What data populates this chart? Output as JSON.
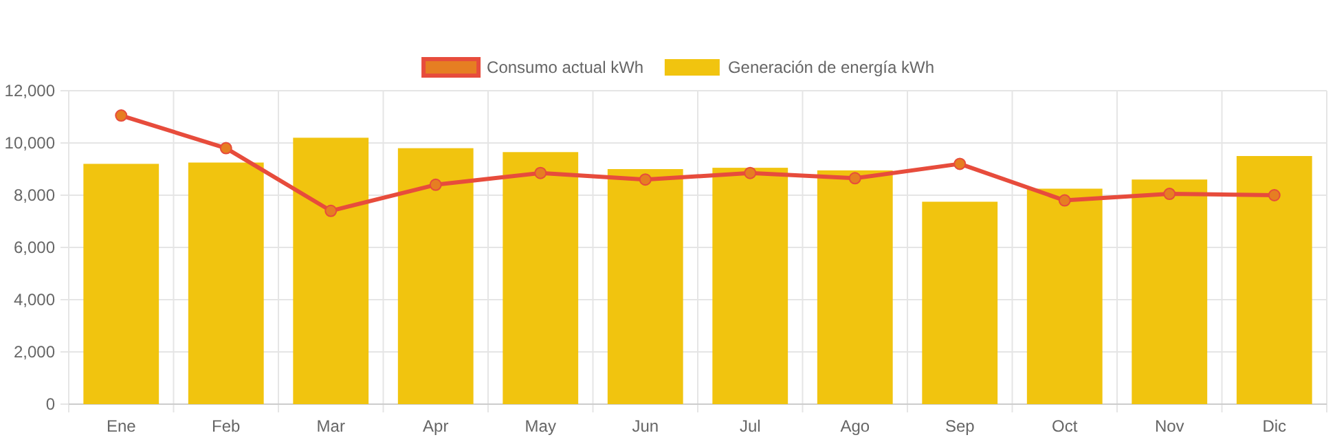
{
  "chart_data": {
    "type": "bar",
    "categories": [
      "Ene",
      "Feb",
      "Mar",
      "Apr",
      "May",
      "Jun",
      "Jul",
      "Ago",
      "Sep",
      "Oct",
      "Nov",
      "Dic"
    ],
    "series": [
      {
        "name": "Consumo actual kWh",
        "type": "line",
        "color": "#e74c3c",
        "values": [
          11050,
          9800,
          7400,
          8400,
          8850,
          8600,
          8850,
          8650,
          9200,
          7800,
          8050,
          8000
        ]
      },
      {
        "name": "Generación de energía kWh",
        "color": "#f1c40f",
        "values": [
          9200,
          9250,
          10200,
          9800,
          9650,
          9000,
          9050,
          8950,
          7750,
          8250,
          8600,
          9500
        ]
      }
    ],
    "ylim": [
      0,
      12000
    ],
    "yticks": [
      {
        "value": 0,
        "label": "0"
      },
      {
        "value": 2000,
        "label": "2,000"
      },
      {
        "value": 4000,
        "label": "4,000"
      },
      {
        "value": 6000,
        "label": "6,000"
      },
      {
        "value": 8000,
        "label": "8,000"
      },
      {
        "value": 10000,
        "label": "10,000"
      },
      {
        "value": 12000,
        "label": "12,000"
      }
    ],
    "grid": true,
    "legend": "top",
    "marker": "circle"
  }
}
